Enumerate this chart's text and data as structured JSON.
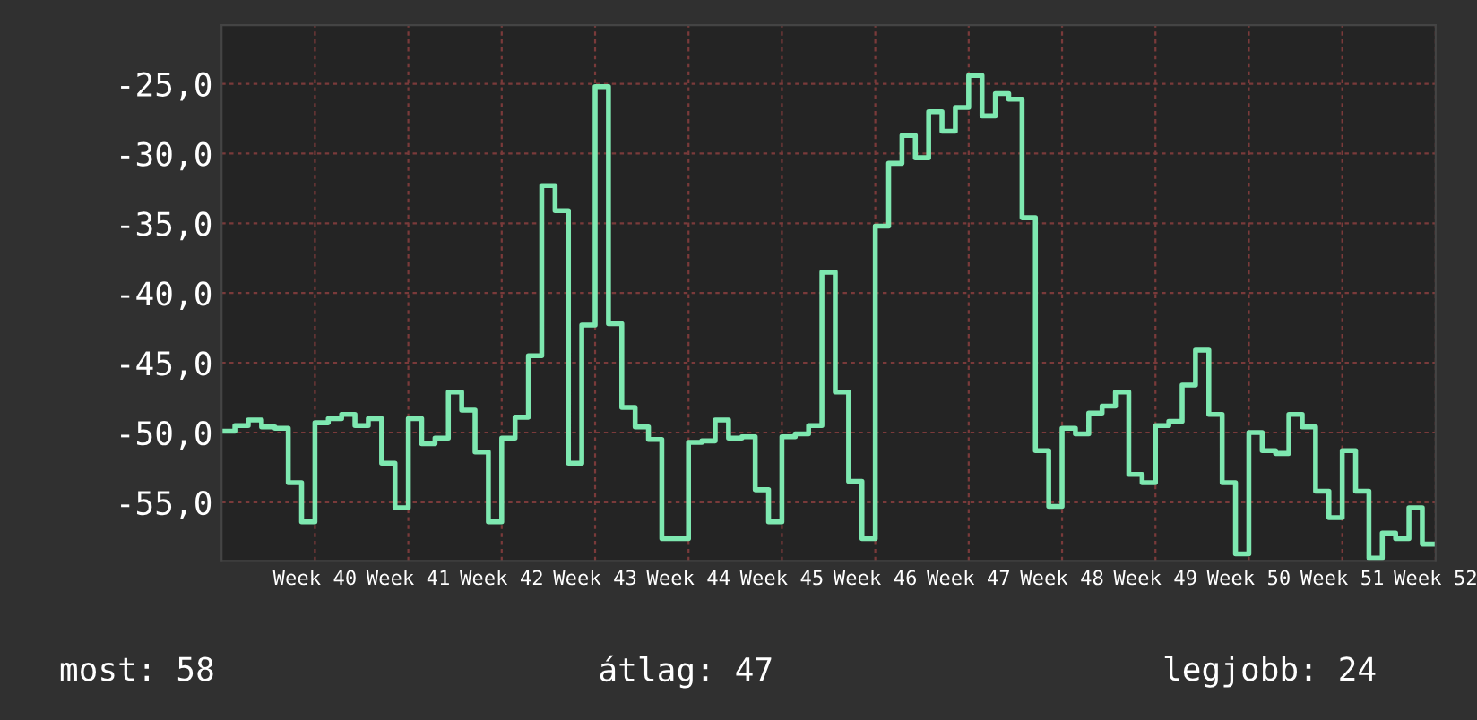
{
  "chart_data": {
    "type": "step",
    "categories": [
      null,
      null,
      null,
      null,
      null,
      null,
      null,
      "Week 40",
      null,
      null,
      null,
      null,
      null,
      null,
      "Week 41",
      null,
      null,
      null,
      null,
      null,
      null,
      "Week 42",
      null,
      null,
      null,
      null,
      null,
      null,
      "Week 43",
      null,
      null,
      null,
      null,
      null,
      null,
      "Week 44",
      null,
      null,
      null,
      null,
      null,
      null,
      "Week 45",
      null,
      null,
      null,
      null,
      null,
      null,
      "Week 46",
      null,
      null,
      null,
      null,
      null,
      null,
      "Week 47",
      null,
      null,
      null,
      null,
      null,
      null,
      "Week 48",
      null,
      null,
      null,
      null,
      null,
      null,
      "Week 49",
      null,
      null,
      null,
      null,
      null,
      null,
      "Week 50",
      null,
      null,
      null,
      null,
      null,
      null,
      "Week 51",
      null,
      null,
      null,
      null,
      null,
      null,
      "Week 52"
    ],
    "values": [
      -49.9,
      -49.5,
      -49.1,
      -49.6,
      -49.7,
      -53.6,
      -56.4,
      -49.3,
      -49.0,
      -48.7,
      -49.5,
      -49.0,
      -52.2,
      -55.4,
      -49.0,
      -50.8,
      -50.4,
      -47.1,
      -48.4,
      -51.4,
      -56.4,
      -50.4,
      -48.9,
      -44.5,
      -32.3,
      -34.1,
      -52.2,
      -42.3,
      -25.2,
      -42.2,
      -48.2,
      -49.6,
      -50.5,
      -57.6,
      -57.6,
      -50.7,
      -50.6,
      -49.1,
      -50.4,
      -50.3,
      -54.1,
      -56.4,
      -50.3,
      -50.1,
      -49.5,
      -38.5,
      -47.1,
      -53.5,
      -57.6,
      -35.2,
      -30.7,
      -28.7,
      -30.3,
      -27.0,
      -28.4,
      -26.7,
      -24.4,
      -27.3,
      -25.7,
      -26.1,
      -34.6,
      -51.3,
      -55.3,
      -49.7,
      -50.1,
      -48.6,
      -48.1,
      -47.1,
      -53.0,
      -53.6,
      -49.5,
      -49.2,
      -46.6,
      -44.1,
      -48.7,
      -53.6,
      -58.7,
      -50.0,
      -51.3,
      -51.5,
      -48.7,
      -49.6,
      -54.2,
      -56.1,
      -51.3,
      -54.2,
      -59.0,
      -57.2,
      -57.6,
      -55.4,
      -58.0,
      -58.0
    ],
    "color": "#7ee8b0",
    "ylim": [
      -59.2,
      -20.8
    ],
    "yticks": [
      {
        "value": -55,
        "label": "-55,0"
      },
      {
        "value": -50,
        "label": "-50,0"
      },
      {
        "value": -45,
        "label": "-45,0"
      },
      {
        "value": -40,
        "label": "-40,0"
      },
      {
        "value": -35,
        "label": "-35,0"
      },
      {
        "value": -30,
        "label": "-30,0"
      },
      {
        "value": -25,
        "label": "-25,0"
      }
    ],
    "grid": true,
    "annotations": [
      "most: 58",
      "átlag: 47",
      "legjobb: 24"
    ]
  }
}
